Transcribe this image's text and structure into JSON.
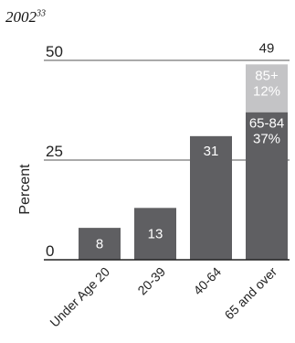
{
  "title": {
    "text": "2002",
    "superscript": "33"
  },
  "chart_data": {
    "type": "bar",
    "stacked": true,
    "title": "2002",
    "xlabel": "",
    "ylabel": "Percent",
    "ylim": [
      0,
      50
    ],
    "yticks": [
      0,
      25,
      50
    ],
    "grid": true,
    "categories": [
      "Under Age 20",
      "20-39",
      "40-64",
      "65 and over"
    ],
    "totals": [
      8,
      13,
      31,
      49
    ],
    "segments": [
      {
        "category": "Under Age 20",
        "value": 8,
        "base": 0,
        "label": "8",
        "color": "#5f5f62",
        "text_color": "#ffffff"
      },
      {
        "category": "20-39",
        "value": 13,
        "base": 0,
        "label": "13",
        "color": "#5f5f62",
        "text_color": "#ffffff"
      },
      {
        "category": "40-64",
        "value": 31,
        "base": 0,
        "label": "31",
        "color": "#5f5f62",
        "text_color": "#ffffff"
      },
      {
        "category": "65 and over",
        "value": 37,
        "base": 0,
        "label": [
          "65-84",
          "37%"
        ],
        "color": "#5f5f62",
        "text_color": "#ffffff"
      },
      {
        "category": "65 and over",
        "value": 12,
        "base": 37,
        "label": [
          "85+",
          "12%"
        ],
        "color": "#c4c4c6",
        "text_color": "#ffffff"
      }
    ],
    "total_labels": [
      {
        "category": "65 and over",
        "text": "49"
      }
    ],
    "colors": {
      "axis": "#222222",
      "grid": "#555555"
    }
  }
}
